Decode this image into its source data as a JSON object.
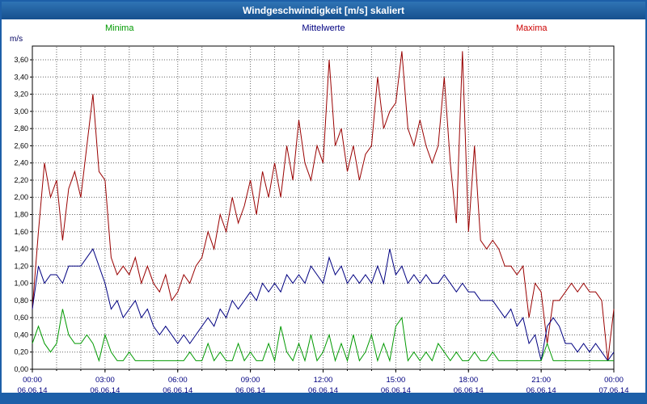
{
  "title": "Windgeschwindigkeit [m/s] skaliert",
  "unit_label": "m/s",
  "legend": [
    {
      "label": "Minima",
      "color": "#009900"
    },
    {
      "label": "Mittelwerte",
      "color": "#000080"
    },
    {
      "label": "Maxima",
      "color": "#cc0000"
    }
  ],
  "colors": {
    "frame_blue": "#1d5fa8",
    "grid": "#666666",
    "minima_line": "#009900",
    "mittelwerte_line": "#000080",
    "maxima_line": "#990000"
  },
  "chart_data": {
    "type": "line",
    "title": "Windgeschwindigkeit [m/s] skaliert",
    "ylabel": "m/s",
    "xlabel": "",
    "grid": true,
    "legend_position": "top",
    "x_start_hour": 0,
    "x_end_hour": 24,
    "sample_interval_minutes": 15,
    "x_tick_hours": [
      0,
      3,
      6,
      9,
      12,
      15,
      18,
      21,
      24
    ],
    "x_tick_labels": [
      "00:00",
      "03:00",
      "06:00",
      "09:00",
      "12:00",
      "15:00",
      "18:00",
      "21:00",
      "00:00"
    ],
    "x_tick_dates": [
      "06.06.14",
      "06.06.14",
      "06.06.14",
      "06.06.14",
      "06.06.14",
      "06.06.14",
      "06.06.14",
      "06.06.14",
      "07.06.14"
    ],
    "ylim": [
      0,
      3.76
    ],
    "y_ticks": [
      0.0,
      0.2,
      0.4,
      0.6,
      0.8,
      1.0,
      1.2,
      1.4,
      1.6,
      1.8,
      2.0,
      2.2,
      2.4,
      2.6,
      2.8,
      3.0,
      3.2,
      3.4,
      3.6
    ],
    "y_tick_labels": [
      "0,00",
      "0,20",
      "0,40",
      "0,60",
      "0,80",
      "1,00",
      "1,20",
      "1,40",
      "1,60",
      "1,80",
      "2,00",
      "2,20",
      "2,40",
      "2,60",
      "2,80",
      "3,00",
      "3,20",
      "3,40",
      "3,60"
    ],
    "series": [
      {
        "name": "Maxima",
        "color": "#990000",
        "values": [
          0.7,
          1.6,
          2.4,
          2.0,
          2.2,
          1.5,
          2.1,
          2.3,
          2.0,
          2.6,
          3.2,
          2.3,
          2.2,
          1.3,
          1.1,
          1.2,
          1.1,
          1.3,
          1.0,
          1.2,
          1.0,
          0.9,
          1.1,
          0.8,
          0.9,
          1.1,
          1.0,
          1.2,
          1.3,
          1.6,
          1.4,
          1.8,
          1.6,
          2.0,
          1.7,
          1.9,
          2.2,
          1.8,
          2.3,
          2.0,
          2.4,
          2.0,
          2.6,
          2.2,
          2.9,
          2.4,
          2.2,
          2.6,
          2.4,
          3.6,
          2.6,
          2.8,
          2.3,
          2.6,
          2.2,
          2.5,
          2.6,
          3.4,
          2.8,
          3.0,
          3.1,
          3.7,
          2.8,
          2.6,
          2.9,
          2.6,
          2.4,
          2.6,
          3.4,
          2.4,
          1.7,
          3.7,
          1.6,
          2.6,
          1.5,
          1.4,
          1.5,
          1.4,
          1.2,
          1.2,
          1.1,
          1.2,
          0.6,
          1.0,
          0.9,
          0.3,
          0.8,
          0.8,
          0.9,
          1.0,
          0.9,
          1.0,
          0.9,
          0.9,
          0.8,
          0.1,
          0.7
        ]
      },
      {
        "name": "Mittelwerte",
        "color": "#000080",
        "values": [
          0.7,
          1.2,
          1.0,
          1.1,
          1.1,
          1.0,
          1.2,
          1.2,
          1.2,
          1.3,
          1.4,
          1.2,
          1.0,
          0.7,
          0.8,
          0.6,
          0.7,
          0.8,
          0.6,
          0.7,
          0.5,
          0.4,
          0.5,
          0.4,
          0.3,
          0.4,
          0.3,
          0.4,
          0.5,
          0.6,
          0.5,
          0.7,
          0.6,
          0.8,
          0.7,
          0.8,
          0.9,
          0.8,
          1.0,
          0.9,
          1.0,
          0.9,
          1.1,
          1.0,
          1.1,
          1.0,
          1.2,
          1.1,
          1.0,
          1.3,
          1.1,
          1.2,
          1.0,
          1.1,
          1.0,
          1.1,
          1.0,
          1.2,
          1.0,
          1.4,
          1.1,
          1.2,
          1.0,
          1.1,
          1.0,
          1.1,
          1.0,
          1.0,
          1.1,
          1.0,
          0.9,
          1.0,
          0.9,
          0.9,
          0.8,
          0.8,
          0.8,
          0.7,
          0.6,
          0.7,
          0.5,
          0.6,
          0.3,
          0.4,
          0.1,
          0.5,
          0.6,
          0.5,
          0.3,
          0.3,
          0.2,
          0.3,
          0.2,
          0.3,
          0.2,
          0.1,
          0.2
        ]
      },
      {
        "name": "Minima",
        "color": "#009900",
        "values": [
          0.3,
          0.5,
          0.3,
          0.2,
          0.3,
          0.7,
          0.4,
          0.3,
          0.3,
          0.4,
          0.3,
          0.1,
          0.4,
          0.2,
          0.1,
          0.1,
          0.2,
          0.1,
          0.1,
          0.1,
          0.1,
          0.1,
          0.1,
          0.1,
          0.1,
          0.1,
          0.2,
          0.1,
          0.1,
          0.3,
          0.1,
          0.2,
          0.1,
          0.1,
          0.3,
          0.1,
          0.2,
          0.1,
          0.1,
          0.3,
          0.1,
          0.5,
          0.2,
          0.1,
          0.3,
          0.1,
          0.4,
          0.1,
          0.2,
          0.4,
          0.1,
          0.3,
          0.1,
          0.4,
          0.1,
          0.2,
          0.4,
          0.1,
          0.3,
          0.1,
          0.5,
          0.6,
          0.1,
          0.2,
          0.1,
          0.2,
          0.1,
          0.3,
          0.2,
          0.1,
          0.2,
          0.1,
          0.1,
          0.2,
          0.1,
          0.1,
          0.2,
          0.1,
          0.1,
          0.1,
          0.1,
          0.1,
          0.1,
          0.1,
          0.1,
          0.3,
          0.1,
          0.1,
          0.1,
          0.1,
          0.1,
          0.1,
          0.1,
          0.1,
          0.1,
          0.1,
          0.1
        ]
      }
    ]
  }
}
